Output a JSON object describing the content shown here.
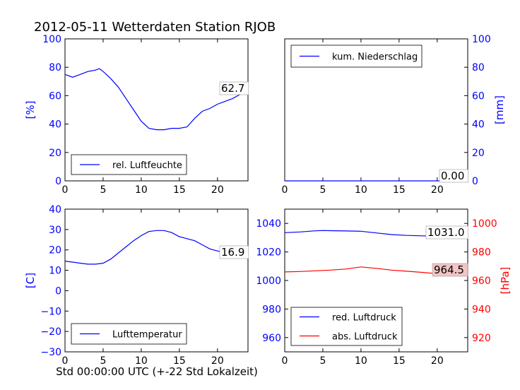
{
  "figure": {
    "title": "2012-05-11 Wetterdaten Station RJOB",
    "xlabel": "Std 00:00:00 UTC (+-22 Std Lokalzeit)"
  },
  "colors": {
    "blue": "#0000ff",
    "red": "#ff0000",
    "anno_red_bg": "#f4c3c3"
  },
  "chart_data": [
    {
      "type": "line",
      "panel": "top-left",
      "ylabel": "[%]",
      "xlim": [
        0,
        24
      ],
      "ylim": [
        0,
        100
      ],
      "xticks": [
        0,
        5,
        10,
        15,
        20
      ],
      "yticks": [
        0,
        20,
        40,
        60,
        80,
        100
      ],
      "legend_position": "lower-left",
      "annotation": "62.7",
      "series": [
        {
          "name": "rel. Luftfeuchte",
          "color": "#0000ff",
          "x": [
            0,
            1,
            2,
            3,
            4,
            4.5,
            5,
            6,
            7,
            8,
            9,
            10,
            11,
            12,
            13,
            14,
            15,
            16,
            17,
            18,
            19,
            20,
            21,
            22,
            23,
            24
          ],
          "y": [
            75,
            73,
            75,
            77,
            78,
            79,
            77,
            72,
            66,
            58,
            50,
            42,
            37,
            36,
            36,
            37,
            37,
            38,
            44,
            49,
            51,
            54,
            56,
            58,
            61,
            63
          ]
        }
      ]
    },
    {
      "type": "line",
      "panel": "top-right",
      "ylabel": "[mm]",
      "xlim": [
        0,
        24
      ],
      "ylim": [
        0,
        100
      ],
      "xticks": [
        0,
        5,
        10,
        15,
        20
      ],
      "yticks": [
        0,
        20,
        40,
        60,
        80,
        100
      ],
      "legend_position": "upper-left",
      "annotation": "0.00",
      "series": [
        {
          "name": "kum. Niederschlag",
          "color": "#0000ff",
          "x": [
            0,
            24
          ],
          "y": [
            0,
            0
          ]
        }
      ]
    },
    {
      "type": "line",
      "panel": "bottom-left",
      "ylabel": "[C]",
      "xlim": [
        0,
        24
      ],
      "ylim": [
        -30,
        40
      ],
      "xticks": [
        0,
        5,
        10,
        15,
        20
      ],
      "yticks": [
        -30,
        -20,
        -10,
        0,
        10,
        20,
        30,
        40
      ],
      "legend_position": "lower-left",
      "annotation": "16.9",
      "series": [
        {
          "name": "Lufttemperatur",
          "color": "#0000ff",
          "x": [
            0,
            1,
            2,
            3,
            4,
            5,
            6,
            7,
            8,
            9,
            10,
            11,
            12,
            13,
            14,
            15,
            16,
            17,
            18,
            19,
            20,
            21,
            22,
            23,
            24
          ],
          "y": [
            14.5,
            14,
            13.5,
            13,
            13,
            13.5,
            15.5,
            18.5,
            21.5,
            24.5,
            27,
            29,
            29.5,
            29.5,
            28.5,
            26.5,
            25.5,
            24.5,
            22.5,
            20.5,
            19.5,
            18.5,
            17.8,
            17.2,
            16.9
          ]
        }
      ]
    },
    {
      "type": "line",
      "panel": "bottom-right",
      "ylabel_right": "[hPa]",
      "xlim": [
        0,
        24
      ],
      "ylim_left": [
        950,
        1050
      ],
      "ylim_right": [
        910,
        1010
      ],
      "xticks": [
        0,
        5,
        10,
        15,
        20
      ],
      "yticks_left": [
        960,
        980,
        1000,
        1020,
        1040
      ],
      "yticks_right": [
        920,
        940,
        960,
        980,
        1000
      ],
      "legend_position": "lower-left",
      "annotations": [
        "1031.0",
        "964.5"
      ],
      "series": [
        {
          "name": "red. Luftdruck",
          "color": "#0000ff",
          "axis": "left",
          "x": [
            0,
            2,
            4,
            5,
            6,
            8,
            10,
            12,
            14,
            16,
            18,
            20,
            22,
            24
          ],
          "y": [
            1033.5,
            1034,
            1034.8,
            1035,
            1034.9,
            1034.7,
            1034.5,
            1033.3,
            1032.2,
            1031.6,
            1031.3,
            1031,
            1031,
            1031
          ]
        },
        {
          "name": "abs. Luftdruck",
          "color": "#ff0000",
          "axis": "right",
          "x": [
            0,
            2,
            4,
            6,
            8,
            10,
            12,
            14,
            16,
            18,
            20,
            22,
            24
          ],
          "y": [
            966,
            966.3,
            966.8,
            967.3,
            968,
            969.5,
            968.5,
            967.3,
            966.5,
            965.7,
            964.8,
            964.5,
            964.5
          ]
        }
      ]
    }
  ]
}
